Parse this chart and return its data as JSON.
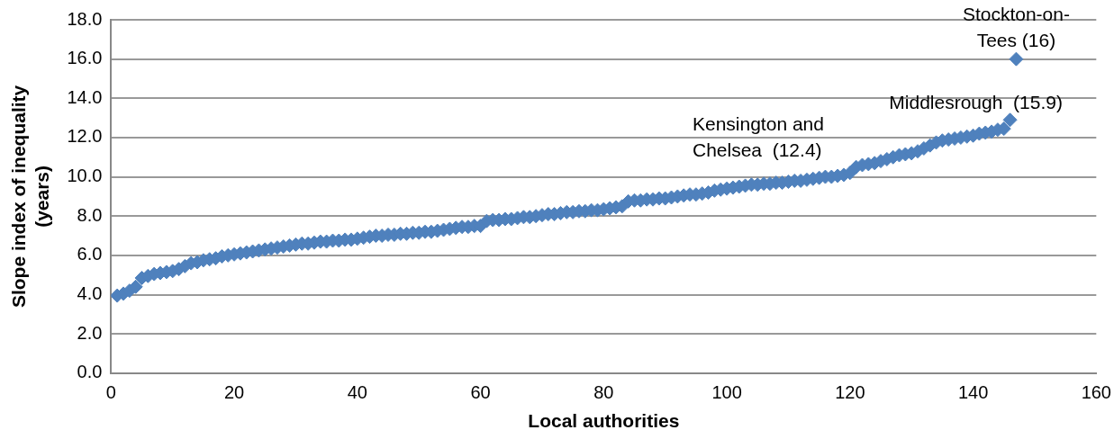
{
  "chart_data": {
    "type": "scatter",
    "xlabel": "Local authorities",
    "ylabel": "Slope index of inequality\n(years)",
    "x": [
      1,
      2,
      3,
      4,
      5,
      6,
      7,
      8,
      9,
      10,
      11,
      12,
      13,
      14,
      15,
      16,
      17,
      18,
      19,
      20,
      21,
      22,
      23,
      24,
      25,
      26,
      27,
      28,
      29,
      30,
      31,
      32,
      33,
      34,
      35,
      36,
      37,
      38,
      39,
      40,
      41,
      42,
      43,
      44,
      45,
      46,
      47,
      48,
      49,
      50,
      51,
      52,
      53,
      54,
      55,
      56,
      57,
      58,
      59,
      60,
      61,
      62,
      63,
      64,
      65,
      66,
      67,
      68,
      69,
      70,
      71,
      72,
      73,
      74,
      75,
      76,
      77,
      78,
      79,
      80,
      81,
      82,
      83,
      84,
      85,
      86,
      87,
      88,
      89,
      90,
      91,
      92,
      93,
      94,
      95,
      96,
      97,
      98,
      99,
      100,
      101,
      102,
      103,
      104,
      105,
      106,
      107,
      108,
      109,
      110,
      111,
      112,
      113,
      114,
      115,
      116,
      117,
      118,
      119,
      120,
      121,
      122,
      123,
      124,
      125,
      126,
      127,
      128,
      129,
      130,
      131,
      132,
      133,
      134,
      135,
      136,
      137,
      138,
      139,
      140,
      141,
      142,
      143,
      144,
      145,
      146,
      147
    ],
    "series": [
      {
        "color": "#4f81bd",
        "values": [
          3.95,
          4.05,
          4.2,
          4.4,
          4.85,
          4.95,
          5.05,
          5.1,
          5.15,
          5.2,
          5.3,
          5.45,
          5.6,
          5.65,
          5.75,
          5.8,
          5.85,
          5.95,
          6.0,
          6.05,
          6.1,
          6.15,
          6.2,
          6.25,
          6.3,
          6.35,
          6.4,
          6.45,
          6.5,
          6.55,
          6.6,
          6.6,
          6.65,
          6.7,
          6.7,
          6.75,
          6.75,
          6.8,
          6.8,
          6.85,
          6.9,
          6.95,
          7.0,
          7.0,
          7.05,
          7.05,
          7.1,
          7.1,
          7.15,
          7.15,
          7.2,
          7.2,
          7.25,
          7.3,
          7.35,
          7.4,
          7.45,
          7.45,
          7.5,
          7.5,
          7.75,
          7.8,
          7.8,
          7.85,
          7.85,
          7.9,
          7.95,
          7.95,
          8.0,
          8.05,
          8.1,
          8.1,
          8.15,
          8.2,
          8.2,
          8.25,
          8.25,
          8.3,
          8.3,
          8.35,
          8.4,
          8.45,
          8.5,
          8.75,
          8.8,
          8.8,
          8.85,
          8.85,
          8.9,
          8.9,
          8.95,
          9.0,
          9.05,
          9.1,
          9.1,
          9.15,
          9.2,
          9.3,
          9.35,
          9.4,
          9.45,
          9.5,
          9.55,
          9.6,
          9.6,
          9.65,
          9.65,
          9.7,
          9.7,
          9.75,
          9.8,
          9.8,
          9.85,
          9.9,
          9.95,
          10.0,
          10.0,
          10.05,
          10.1,
          10.2,
          10.5,
          10.6,
          10.65,
          10.7,
          10.8,
          10.9,
          11.0,
          11.1,
          11.15,
          11.2,
          11.3,
          11.45,
          11.6,
          11.75,
          11.85,
          11.9,
          11.95,
          12.0,
          12.05,
          12.1,
          12.2,
          12.25,
          12.3,
          12.4,
          12.45,
          12.9,
          16.0
        ]
      }
    ],
    "xlim": [
      0,
      160
    ],
    "xticks": [
      0,
      20,
      40,
      60,
      80,
      100,
      120,
      140,
      160
    ],
    "ylim": [
      0,
      18
    ],
    "yticks": [
      {
        "value": 0,
        "label": "0.0"
      },
      {
        "value": 2,
        "label": "2.0"
      },
      {
        "value": 4,
        "label": "4.0"
      },
      {
        "value": 6,
        "label": "6.0"
      },
      {
        "value": 8,
        "label": "8.0"
      },
      {
        "value": 10,
        "label": "10.0"
      },
      {
        "value": 12,
        "label": "12.0"
      },
      {
        "value": 14,
        "label": "14.0"
      },
      {
        "value": 16,
        "label": "16.0"
      },
      {
        "value": 18,
        "label": "18.0"
      }
    ],
    "grid": "y",
    "marker": "diamond",
    "legend": false,
    "annotations": [
      {
        "text": "Stockton-on-\nTees (16)",
        "x": 147,
        "y": 16.0
      },
      {
        "text": "Middlesrough  (15.9)",
        "x": 146,
        "y": 12.9
      },
      {
        "text": "Kensington and\nChelsea  (12.4)",
        "x": 119,
        "y": 10.1
      }
    ]
  }
}
